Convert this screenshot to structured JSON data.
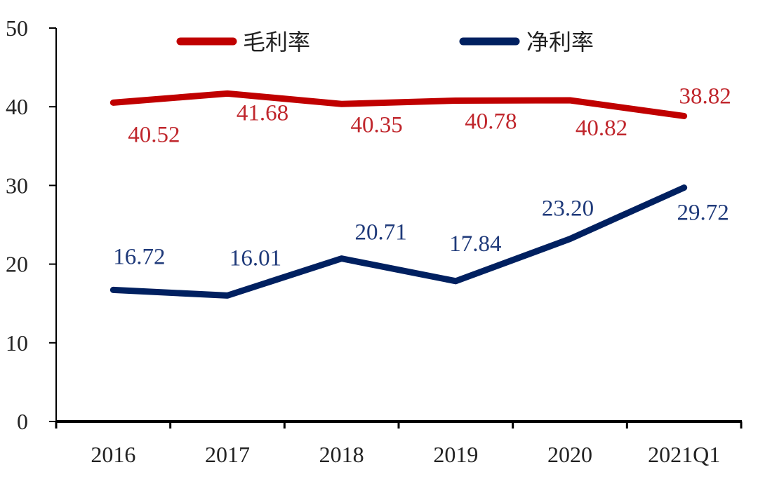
{
  "chart_data": {
    "type": "line",
    "title": "",
    "xlabel": "",
    "ylabel": "",
    "categories": [
      "2016",
      "2017",
      "2018",
      "2019",
      "2020",
      "2021Q1"
    ],
    "ylim": [
      0,
      50
    ],
    "yticks": [
      0,
      10,
      20,
      30,
      40,
      50
    ],
    "grid": false,
    "legend_position": "top",
    "series": [
      {
        "name": "毛利率",
        "color": "#C00000",
        "values": [
          40.52,
          41.68,
          40.35,
          40.78,
          40.82,
          38.82
        ],
        "labels": [
          "40.52",
          "41.68",
          "40.35",
          "40.78",
          "40.82",
          "38.82"
        ]
      },
      {
        "name": "净利率",
        "color": "#002060",
        "values": [
          16.72,
          16.01,
          20.71,
          17.84,
          23.2,
          29.72
        ],
        "labels": [
          "16.72",
          "16.01",
          "20.71",
          "17.84",
          "23.20",
          "29.72"
        ]
      }
    ]
  },
  "legend": {
    "gross_margin": "毛利率",
    "net_margin": "净利率"
  },
  "axis": {
    "y_ticks": [
      "0",
      "10",
      "20",
      "30",
      "40",
      "50"
    ],
    "x_ticks": [
      "2016",
      "2017",
      "2018",
      "2019",
      "2020",
      "2021Q1"
    ]
  }
}
